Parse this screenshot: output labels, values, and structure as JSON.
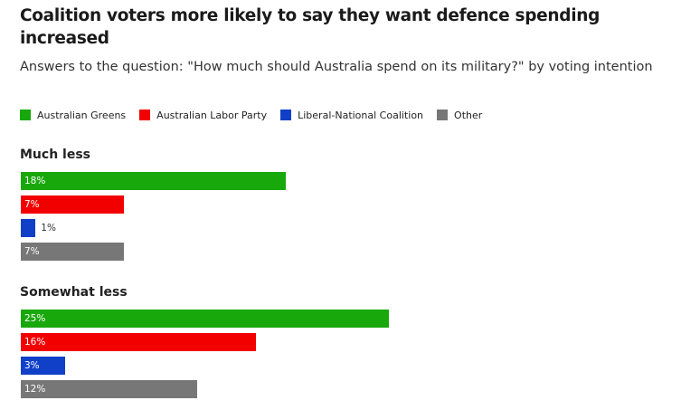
{
  "chart_data": {
    "type": "bar",
    "orientation": "horizontal",
    "title": "Coalition voters more likely to say they want defence spending increased",
    "subtitle": "Answers to the question: \"How much should Australia spend on its military?\" by voting intention",
    "xlim": [
      0,
      25
    ],
    "legend_placement": "top",
    "grid": false,
    "series": [
      {
        "name": "Australian Greens",
        "color": "#18a80b"
      },
      {
        "name": "Australian Labor Party",
        "color": "#f20000"
      },
      {
        "name": "Liberal-National Coalition",
        "color": "#1040c8"
      },
      {
        "name": "Other",
        "color": "#777777"
      }
    ],
    "groups": [
      {
        "label": "Much less",
        "values": [
          18,
          7,
          1,
          7
        ],
        "labels": [
          "18%",
          "7%",
          "1%",
          "7%"
        ]
      },
      {
        "label": "Somewhat less",
        "values": [
          25,
          16,
          3,
          12
        ],
        "labels": [
          "25%",
          "16%",
          "3%",
          "12%"
        ]
      }
    ]
  }
}
